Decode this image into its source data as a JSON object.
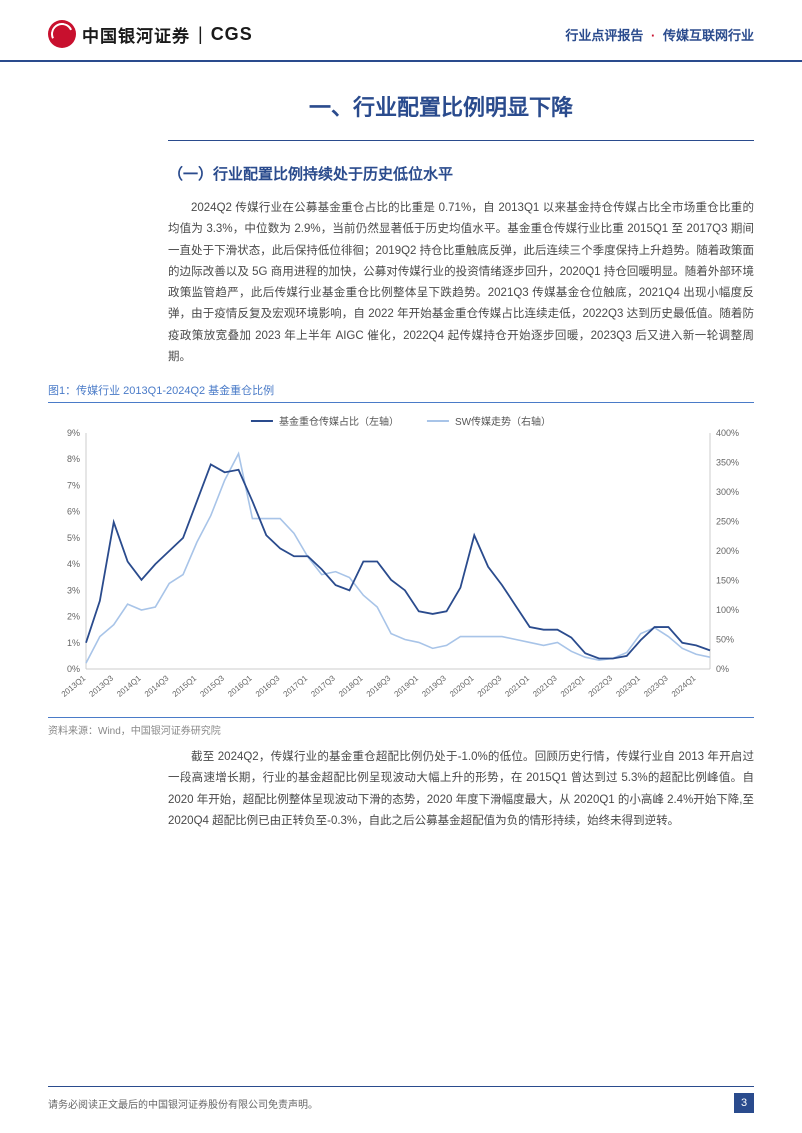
{
  "header": {
    "logo_cn": "中国银河证券",
    "logo_en": "CGS",
    "right_a": "行业点评报告",
    "right_b": "传媒互联网行业"
  },
  "title_main": "一、行业配置比例明显下降",
  "subtitle": "（一）行业配置比例持续处于历史低位水平",
  "para1": "2024Q2 传媒行业在公募基金重仓占比的比重是 0.71%，自 2013Q1 以来基金持仓传媒占比全市场重仓比重的均值为 3.3%，中位数为 2.9%，当前仍然显著低于历史均值水平。基金重仓传媒行业比重 2015Q1 至 2017Q3 期间一直处于下滑状态，此后保持低位徘徊；2019Q2 持仓比重触底反弹，此后连续三个季度保持上升趋势。随着政策面的边际改善以及 5G 商用进程的加快，公募对传媒行业的投资情绪逐步回升，2020Q1 持仓回暖明显。随着外部环境政策监管趋严，此后传媒行业基金重仓比例整体呈下跌趋势。2021Q3 传媒基金仓位触底，2021Q4 出现小幅度反弹，由于疫情反复及宏观环境影响，自 2022 年开始基金重仓传媒占比连续走低，2022Q3 达到历史最低值。随着防疫政策放宽叠加 2023 年上半年 AIGC 催化，2022Q4 起传媒持仓开始逐步回暖，2023Q3 后又进入新一轮调整周期。",
  "fig_caption": "图1：传媒行业 2013Q1-2024Q2 基金重仓比例",
  "source": "资料来源：Wind，中国银河证券研究院",
  "para2": "截至 2024Q2，传媒行业的基金重仓超配比例仍处于-1.0%的低位。回顾历史行情，传媒行业自 2013 年开启过一段高速增长期，行业的基金超配比例呈现波动大幅上升的形势，在 2015Q1 曾达到过 5.3%的超配比例峰值。自 2020 年开始，超配比例整体呈现波动下滑的态势，2020 年度下滑幅度最大，从 2020Q1 的小高峰 2.4%开始下降,至 2020Q4 超配比例已由正转负至-0.3%，自此之后公募基金超配值为负的情形持续，始终未得到逆转。",
  "footer": {
    "disclaimer": "请务必阅读正文最后的中国银河证券股份有限公司免责声明。",
    "page": "3"
  },
  "chart": {
    "type": "dual-axis-line",
    "legend": [
      {
        "label": "基金重仓传媒占比（左轴）",
        "color": "#2a4b8d"
      },
      {
        "label": "SW传媒走势（右轴）",
        "color": "#a8c4e8"
      }
    ],
    "left_axis": {
      "min": 0,
      "max": 9,
      "step": 1,
      "suffix": "%",
      "ticks": [
        "0%",
        "1%",
        "2%",
        "3%",
        "4%",
        "5%",
        "6%",
        "7%",
        "8%",
        "9%"
      ]
    },
    "right_axis": {
      "min": 0,
      "max": 400,
      "step": 50,
      "suffix": "%",
      "ticks": [
        "0%",
        "50%",
        "100%",
        "150%",
        "200%",
        "250%",
        "300%",
        "350%",
        "400%"
      ]
    },
    "x_labels": [
      "2013Q1",
      "2013Q3",
      "2014Q1",
      "2014Q3",
      "2015Q1",
      "2015Q3",
      "2016Q1",
      "2016Q3",
      "2017Q1",
      "2017Q3",
      "2018Q1",
      "2018Q3",
      "2019Q1",
      "2019Q3",
      "2020Q1",
      "2020Q3",
      "2021Q1",
      "2021Q3",
      "2022Q1",
      "2022Q3",
      "2023Q1",
      "2023Q3",
      "2024Q1"
    ],
    "series_left": {
      "color": "#2a4b8d",
      "stroke_width": 1.8,
      "values": [
        1.0,
        2.6,
        5.6,
        4.1,
        3.4,
        4.0,
        4.5,
        5.0,
        6.4,
        7.8,
        7.5,
        7.6,
        6.4,
        5.1,
        4.6,
        4.3,
        4.3,
        3.8,
        3.2,
        3.0,
        4.1,
        4.1,
        3.4,
        3.0,
        2.2,
        2.1,
        2.2,
        3.1,
        5.1,
        3.9,
        3.2,
        2.4,
        1.6,
        1.5,
        1.5,
        1.2,
        0.6,
        0.4,
        0.4,
        0.5,
        1.1,
        1.6,
        1.6,
        1.0,
        0.9,
        0.71
      ]
    },
    "series_right": {
      "color": "#a8c4e8",
      "stroke_width": 1.6,
      "values": [
        10,
        55,
        75,
        110,
        100,
        105,
        145,
        160,
        215,
        260,
        320,
        365,
        255,
        255,
        255,
        230,
        190,
        160,
        165,
        155,
        125,
        105,
        60,
        50,
        45,
        35,
        40,
        55,
        55,
        55,
        55,
        50,
        45,
        40,
        45,
        30,
        20,
        15,
        18,
        28,
        60,
        70,
        55,
        35,
        25,
        20
      ]
    },
    "background_color": "#ffffff",
    "grid_color": "#e8e8e8",
    "axis_fontsize": 9,
    "x_fontsize": 8
  }
}
